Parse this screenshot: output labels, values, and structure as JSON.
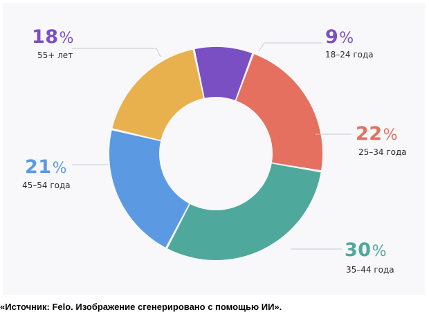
{
  "chart_data": {
    "type": "pie",
    "variant": "donut",
    "title": "",
    "slices": [
      {
        "label": "18–24 года",
        "value": 9,
        "display": "9",
        "unit": "%",
        "color": "#7b4fc4"
      },
      {
        "label": "25–34 года",
        "value": 22,
        "display": "22",
        "unit": "%",
        "color": "#e5705f"
      },
      {
        "label": "35–44 года",
        "value": 30,
        "display": "30",
        "unit": "%",
        "color": "#4fa89c"
      },
      {
        "label": "45–54 года",
        "value": 21,
        "display": "21",
        "unit": "%",
        "color": "#5b9ae2"
      },
      {
        "label": "55+ лет",
        "value": 18,
        "display": "18",
        "unit": "%",
        "color": "#e8b14e"
      }
    ]
  },
  "caption": "«Источник: Felo. Изображение сгенерировано с помощью ИИ».",
  "colors": {
    "background": "#f8f8fa",
    "leader_line": "#c9c9cf",
    "text": "#2b2b2b"
  }
}
